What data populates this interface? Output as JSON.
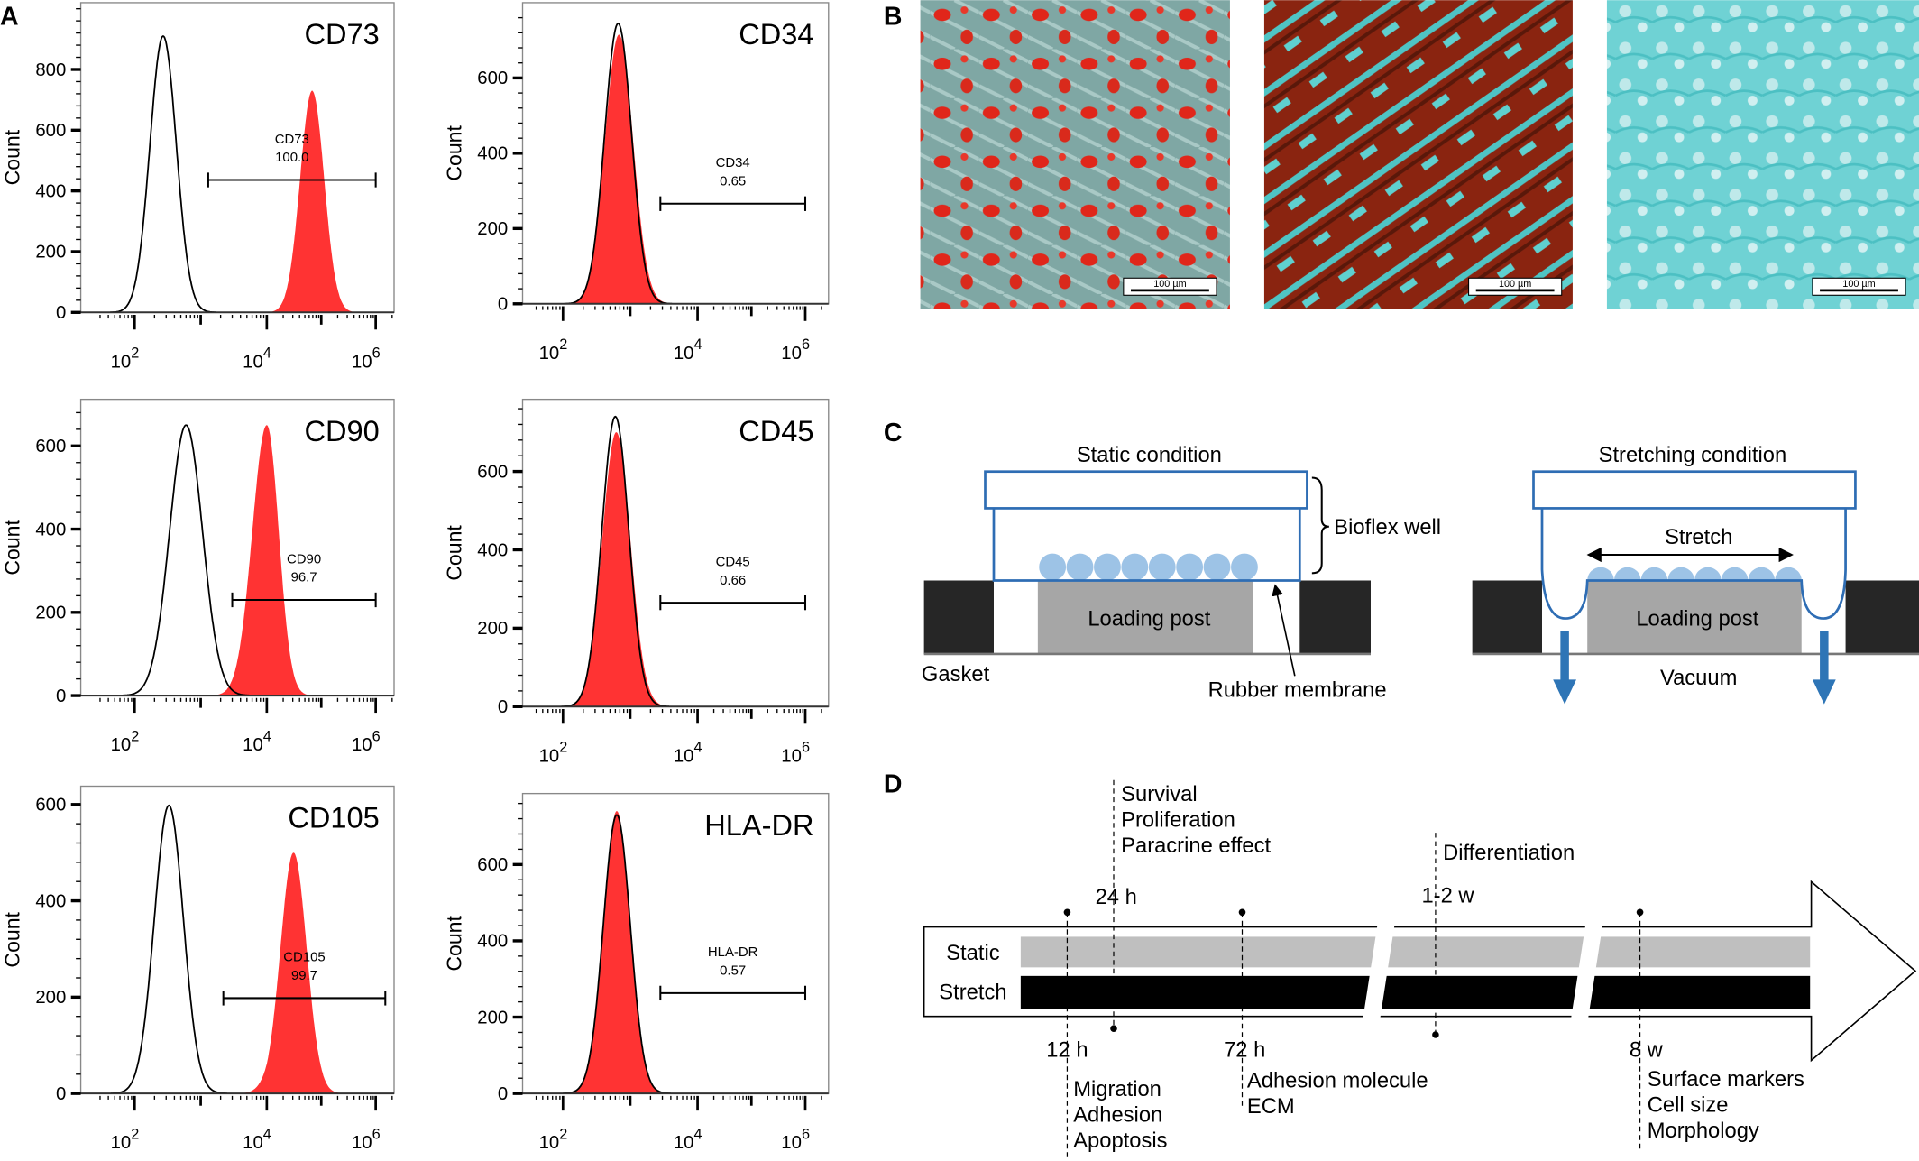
{
  "panel_labels": {
    "a": "A",
    "b": "B",
    "c": "C",
    "d": "D"
  },
  "colors": {
    "stained_fill": "#ff3333",
    "isotype_line": "#000000",
    "well_blue": "#2e6db4",
    "cell_blue": "#9dc3e6",
    "post_grey": "#a6a6a6",
    "gasket": "#262626",
    "vacuum_arrow": "#2e75b6",
    "static_bar": "#bfbfbf",
    "stretch_bar": "#000000"
  },
  "chart_data": [
    {
      "type": "histogram",
      "title": "CD73",
      "ylabel": "Count",
      "xscale": "log",
      "x_ticks": [
        {
          "base": "10",
          "exp": "2"
        },
        {
          "base": "10",
          "exp": "4"
        },
        {
          "base": "10",
          "exp": "6"
        }
      ],
      "y_ticks": [
        0,
        200,
        400,
        600,
        800
      ],
      "ylim": [
        0,
        1020
      ],
      "isotype_peak": {
        "x": 270,
        "count": 910,
        "sigma_log": 0.2
      },
      "stained_peak": {
        "x": 68000,
        "count": 730,
        "sigma_log": 0.22
      },
      "gate": {
        "name": "CD73",
        "value": "100.0",
        "from": 1300,
        "to": 1000000,
        "count": 436
      }
    },
    {
      "type": "histogram",
      "title": "CD34",
      "ylabel": "Count",
      "xscale": "log",
      "x_ticks": [
        {
          "base": "10",
          "exp": "2"
        },
        {
          "base": "10",
          "exp": "4"
        },
        {
          "base": "10",
          "exp": "6"
        }
      ],
      "y_ticks": [
        0,
        200,
        400,
        600
      ],
      "ylim": [
        0,
        800
      ],
      "isotype_peak": {
        "x": 660,
        "count": 745,
        "sigma_log": 0.2
      },
      "stained_peak": {
        "x": 680,
        "count": 715,
        "sigma_log": 0.21
      },
      "gate": {
        "name": "CD34",
        "value": "0.65",
        "from": 2800,
        "to": 1000000,
        "count": 266
      }
    },
    {
      "type": "histogram",
      "title": "CD90",
      "ylabel": "Count",
      "xscale": "log",
      "x_ticks": [
        {
          "base": "10",
          "exp": "2"
        },
        {
          "base": "10",
          "exp": "4"
        },
        {
          "base": "10",
          "exp": "6"
        }
      ],
      "y_ticks": [
        0,
        200,
        400,
        600
      ],
      "ylim": [
        0,
        712
      ],
      "isotype_peak": {
        "x": 600,
        "count": 650,
        "sigma_log": 0.25
      },
      "stained_peak": {
        "x": 10000,
        "count": 650,
        "sigma_log": 0.22
      },
      "gate": {
        "name": "CD90",
        "value": "96.7",
        "from": 3000,
        "to": 1000000,
        "count": 230
      }
    },
    {
      "type": "histogram",
      "title": "CD45",
      "ylabel": "Count",
      "xscale": "log",
      "x_ticks": [
        {
          "base": "10",
          "exp": "2"
        },
        {
          "base": "10",
          "exp": "4"
        },
        {
          "base": "10",
          "exp": "6"
        }
      ],
      "y_ticks": [
        0,
        200,
        400,
        600
      ],
      "ylim": [
        0,
        784
      ],
      "isotype_peak": {
        "x": 600,
        "count": 740,
        "sigma_log": 0.2
      },
      "stained_peak": {
        "x": 620,
        "count": 700,
        "sigma_log": 0.21
      },
      "gate": {
        "name": "CD45",
        "value": "0.66",
        "from": 2800,
        "to": 1000000,
        "count": 265
      }
    },
    {
      "type": "histogram",
      "title": "CD105",
      "ylabel": "Count",
      "xscale": "log",
      "x_ticks": [
        {
          "base": "10",
          "exp": "2"
        },
        {
          "base": "10",
          "exp": "4"
        },
        {
          "base": "10",
          "exp": "6"
        }
      ],
      "y_ticks": [
        0,
        200,
        400,
        600
      ],
      "ylim": [
        0,
        638
      ],
      "isotype_peak": {
        "x": 330,
        "count": 598,
        "sigma_log": 0.22
      },
      "stained_peak": {
        "x": 31000,
        "count": 500,
        "sigma_log": 0.24
      },
      "gate": {
        "name": "CD105",
        "value": "99.7",
        "from": 2200,
        "to": 1500000,
        "count": 198
      }
    },
    {
      "type": "histogram",
      "title": "HLA-DR",
      "ylabel": "Count",
      "xscale": "log",
      "x_ticks": [
        {
          "base": "10",
          "exp": "2"
        },
        {
          "base": "10",
          "exp": "4"
        },
        {
          "base": "10",
          "exp": "6"
        }
      ],
      "y_ticks": [
        0,
        200,
        400,
        600
      ],
      "ylim": [
        0,
        786
      ],
      "isotype_peak": {
        "x": 630,
        "count": 730,
        "sigma_log": 0.2
      },
      "stained_peak": {
        "x": 630,
        "count": 740,
        "sigma_log": 0.2
      },
      "gate": {
        "name": "HLA-DR",
        "value": "0.57",
        "from": 2800,
        "to": 1000000,
        "count": 263
      }
    }
  ],
  "micrographs": [
    {
      "stain": "red-teal",
      "scale_bar": "100 µm"
    },
    {
      "stain": "brown-teal",
      "scale_bar": "100 µm"
    },
    {
      "stain": "teal",
      "scale_bar": "100 µm"
    }
  ],
  "diagram": {
    "static_title": "Static condition",
    "stretch_title": "Stretching condition",
    "bioflex": "Bioflex well",
    "loading_post": "Loading post",
    "gasket": "Gasket",
    "rubber_membrane": "Rubber membrane",
    "stretch": "Stretch",
    "vacuum": "Vacuum"
  },
  "timeline": {
    "rows": [
      "Static",
      "Stretch"
    ],
    "markers": [
      {
        "time": "12 h",
        "items": [
          "Migration",
          "Adhesion",
          "Apoptosis"
        ]
      },
      {
        "time": "24 h",
        "items": [
          "Survival",
          "Proliferation",
          "Paracrine effect"
        ]
      },
      {
        "time": "72 h",
        "items": [
          "Adhesion molecule",
          "ECM"
        ]
      },
      {
        "time": "1-2 w",
        "items": [
          "Differentiation"
        ]
      },
      {
        "time": "8 w",
        "items": [
          "Surface markers",
          "Cell size",
          "Morphology"
        ]
      }
    ]
  }
}
